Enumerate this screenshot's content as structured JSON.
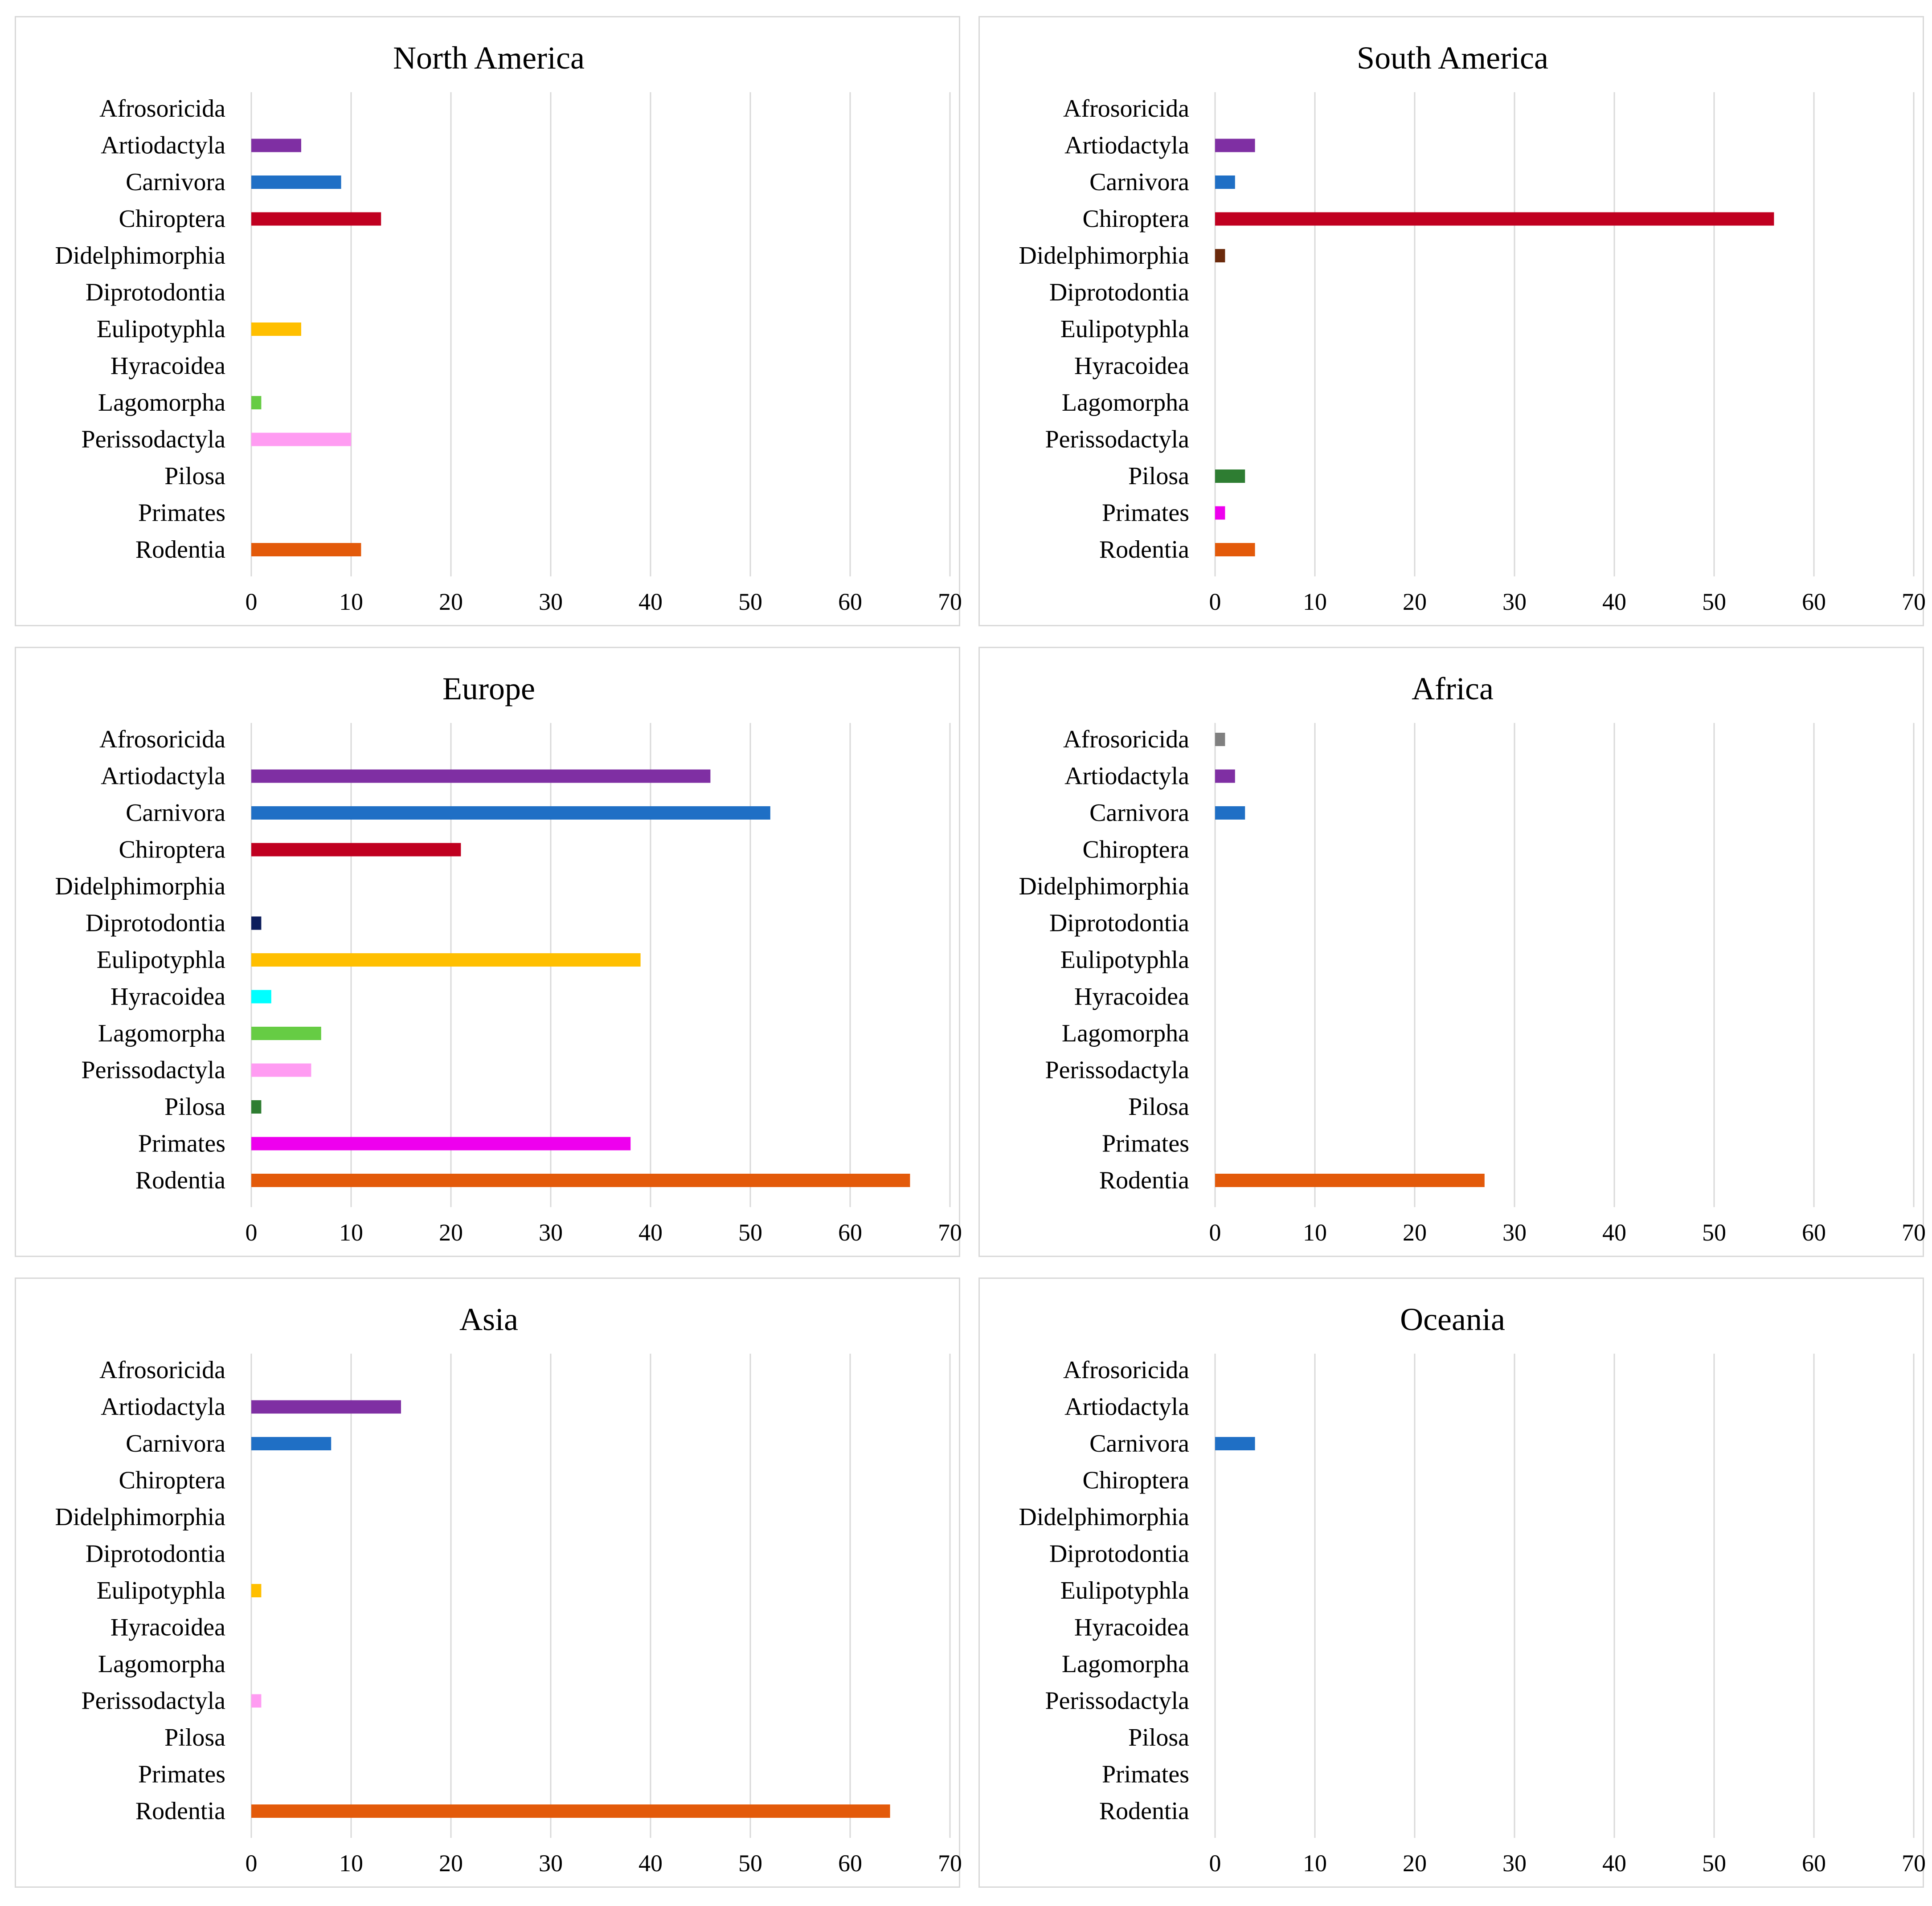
{
  "chart_data": [
    {
      "type": "bar",
      "title": "North America",
      "categories": [
        "Afrosoricida",
        "Artiodactyla",
        "Carnivora",
        "Chiroptera",
        "Didelphimorphia",
        "Diprotodontia",
        "Eulipotyphla",
        "Hyracoidea",
        "Lagomorpha",
        "Perissodactyla",
        "Pilosa",
        "Primates",
        "Rodentia"
      ],
      "values": [
        0,
        5,
        9,
        13,
        0,
        0,
        5,
        0,
        1,
        10,
        0,
        0,
        11
      ],
      "xlim": [
        0,
        70
      ],
      "xticks": [
        "0",
        "10",
        "20",
        "30",
        "40",
        "50",
        "60",
        "70"
      ],
      "grid": true
    },
    {
      "type": "bar",
      "title": "South America",
      "categories": [
        "Afrosoricida",
        "Artiodactyla",
        "Carnivora",
        "Chiroptera",
        "Didelphimorphia",
        "Diprotodontia",
        "Eulipotyphla",
        "Hyracoidea",
        "Lagomorpha",
        "Perissodactyla",
        "Pilosa",
        "Primates",
        "Rodentia"
      ],
      "values": [
        0,
        4,
        2,
        56,
        1,
        0,
        0,
        0,
        0,
        0,
        3,
        1,
        4
      ],
      "xlim": [
        0,
        70
      ],
      "xticks": [
        "0",
        "10",
        "20",
        "30",
        "40",
        "50",
        "60",
        "70"
      ],
      "grid": true
    },
    {
      "type": "bar",
      "title": "Europe",
      "categories": [
        "Afrosoricida",
        "Artiodactyla",
        "Carnivora",
        "Chiroptera",
        "Didelphimorphia",
        "Diprotodontia",
        "Eulipotyphla",
        "Hyracoidea",
        "Lagomorpha",
        "Perissodactyla",
        "Pilosa",
        "Primates",
        "Rodentia"
      ],
      "values": [
        0,
        46,
        52,
        21,
        0,
        1,
        39,
        2,
        7,
        6,
        1,
        38,
        66
      ],
      "xlim": [
        0,
        70
      ],
      "xticks": [
        "0",
        "10",
        "20",
        "30",
        "40",
        "50",
        "60",
        "70"
      ],
      "grid": true
    },
    {
      "type": "bar",
      "title": "Africa",
      "categories": [
        "Afrosoricida",
        "Artiodactyla",
        "Carnivora",
        "Chiroptera",
        "Didelphimorphia",
        "Diprotodontia",
        "Eulipotyphla",
        "Hyracoidea",
        "Lagomorpha",
        "Perissodactyla",
        "Pilosa",
        "Primates",
        "Rodentia"
      ],
      "values": [
        1,
        2,
        3,
        0,
        0,
        0,
        0,
        0,
        0,
        0,
        0,
        0,
        27
      ],
      "xlim": [
        0,
        70
      ],
      "xticks": [
        "0",
        "10",
        "20",
        "30",
        "40",
        "50",
        "60",
        "70"
      ],
      "grid": true
    },
    {
      "type": "bar",
      "title": "Asia",
      "categories": [
        "Afrosoricida",
        "Artiodactyla",
        "Carnivora",
        "Chiroptera",
        "Didelphimorphia",
        "Diprotodontia",
        "Eulipotyphla",
        "Hyracoidea",
        "Lagomorpha",
        "Perissodactyla",
        "Pilosa",
        "Primates",
        "Rodentia"
      ],
      "values": [
        0,
        15,
        8,
        0,
        0,
        0,
        1,
        0,
        0,
        1,
        0,
        0,
        64
      ],
      "xlim": [
        0,
        70
      ],
      "xticks": [
        "0",
        "10",
        "20",
        "30",
        "40",
        "50",
        "60",
        "70"
      ],
      "grid": true
    },
    {
      "type": "bar",
      "title": "Oceania",
      "categories": [
        "Afrosoricida",
        "Artiodactyla",
        "Carnivora",
        "Chiroptera",
        "Didelphimorphia",
        "Diprotodontia",
        "Eulipotyphla",
        "Hyracoidea",
        "Lagomorpha",
        "Perissodactyla",
        "Pilosa",
        "Primates",
        "Rodentia"
      ],
      "values": [
        0,
        0,
        4,
        0,
        0,
        0,
        0,
        0,
        0,
        0,
        0,
        0,
        0
      ],
      "xlim": [
        0,
        70
      ],
      "xticks": [
        "0",
        "10",
        "20",
        "30",
        "40",
        "50",
        "60",
        "70"
      ],
      "grid": true
    }
  ],
  "category_colors": {
    "Afrosoricida": "#808080",
    "Artiodactyla": "#7f2fa3",
    "Carnivora": "#1f6fc5",
    "Chiroptera": "#c00020",
    "Didelphimorphia": "#6b2a0c",
    "Diprotodontia": "#0d1e5c",
    "Eulipotyphla": "#ffbf00",
    "Hyracoidea": "#00ffff",
    "Lagomorpha": "#66cc44",
    "Perissodactyla": "#ff9cf2",
    "Pilosa": "#2e7d32",
    "Primates": "#ee00ee",
    "Rodentia": "#e35a0a"
  }
}
